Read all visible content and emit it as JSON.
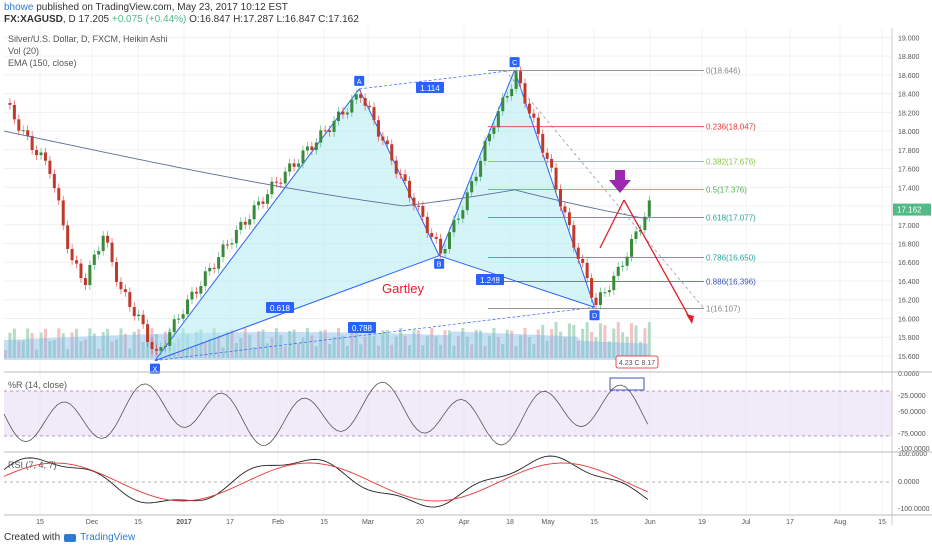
{
  "header": {
    "user": "bhowe",
    "published": "published on TradingView.com, May 23, 2017 10:12 EST",
    "symbol": "FX:XAGUSD",
    "tf": "D",
    "last": "17.205",
    "change": "+0.075 (+0.44%)",
    "ohlc": {
      "o": "16.847",
      "h": "17.287",
      "l": "16.847",
      "c": "17.162"
    }
  },
  "legend": {
    "title": "Silver/U.S. Dollar, D, FXCM, Heikin Ashi",
    "vol": "Vol (20)",
    "ema": "EMA (150, close)",
    "wr": "%R (14, close)",
    "rsi": "RSI (7, 4, 7)"
  },
  "footer": {
    "created": "Created with",
    "brand": "TradingView"
  },
  "colors": {
    "up": "#53b987",
    "down": "#eb4d5c",
    "pattern": "#2962ff",
    "fill": "#b2ebf2",
    "ema": "#5b6e9b",
    "arrow": "#e0202e",
    "purple": "#9c27b0"
  },
  "chart_data": {
    "type": "line",
    "price_axis": {
      "ticks": [
        "19.000",
        "18.800",
        "18.600",
        "18.400",
        "18.200",
        "18.000",
        "17.800",
        "17.600",
        "17.400",
        "17.200",
        "17.000",
        "16.800",
        "16.600",
        "16.400",
        "16.200",
        "16.000",
        "15.800",
        "15.600"
      ],
      "ylim": [
        15.45,
        19.1
      ],
      "last_label": "17.162"
    },
    "wr_axis": {
      "ticks": [
        "0.0000",
        "-25.0000",
        "-50.0000",
        "-75.0000",
        "-100.0000"
      ]
    },
    "rsi_axis": {
      "ticks": [
        "100.0000",
        "0.0000",
        "-100.0000"
      ]
    },
    "time_axis": [
      "15",
      "Dec",
      "15",
      "2017",
      "17",
      "Feb",
      "15",
      "Mar",
      "20",
      "Apr",
      "18",
      "May",
      "15",
      "Jun",
      "19",
      "Jul",
      "17",
      "Aug",
      "15"
    ],
    "pattern_name": "Gartley",
    "pattern_points": [
      {
        "label": "X",
        "date_index": 34,
        "price": 15.55
      },
      {
        "label": "A",
        "date_index": 80,
        "price": 18.45
      },
      {
        "label": "B",
        "date_index": 98,
        "price": 16.67
      },
      {
        "label": "C",
        "date_index": 115,
        "price": 18.65
      },
      {
        "label": "D",
        "date_index": 133,
        "price": 16.12
      }
    ],
    "ratios": [
      "1.114",
      "0.618",
      "1.248",
      "0.788"
    ],
    "fibonacci": [
      {
        "level": "0",
        "price": "18.646"
      },
      {
        "level": "0.236",
        "price": "18.047"
      },
      {
        "level": "0.382",
        "price": "17.676"
      },
      {
        "level": "0.5",
        "price": "17.376"
      },
      {
        "level": "0.618",
        "price": "17.077"
      },
      {
        "level": "0.786",
        "price": "16.650"
      },
      {
        "level": "0.886",
        "price": "16.396"
      },
      {
        "level": "1",
        "price": "16.107"
      }
    ],
    "volume_label": "4.23 C 8.17"
  }
}
